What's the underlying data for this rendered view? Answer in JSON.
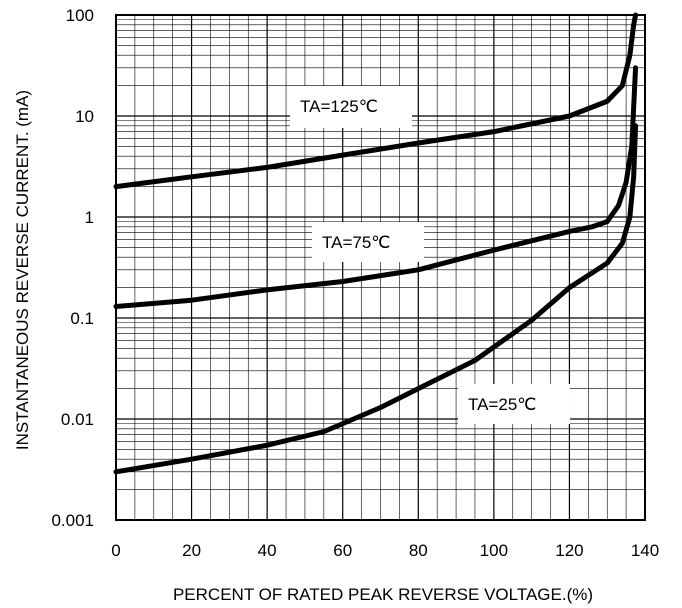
{
  "chart_data": {
    "type": "line",
    "title": "",
    "xlabel": "PERCENT OF RATED PEAK REVERSE VOLTAGE.(%)",
    "ylabel": "INSTANTANEOUS REVERSE CURRENT. (mA)",
    "xlim": [
      0,
      140
    ],
    "ylim": [
      0.001,
      100
    ],
    "yscale": "log",
    "grid": true,
    "x_ticks": [
      0,
      20,
      40,
      60,
      80,
      100,
      120,
      140
    ],
    "x_tick_labels": [
      "0",
      "20",
      "40",
      "60",
      "80",
      "100",
      "120",
      "140"
    ],
    "y_ticks": [
      0.001,
      0.01,
      0.1,
      1,
      10,
      100
    ],
    "y_tick_labels": [
      "0.001",
      "0.01",
      "0.1",
      "1",
      "10",
      "100"
    ],
    "series": [
      {
        "name": "TA=125℃",
        "x": [
          0,
          20,
          40,
          60,
          80,
          100,
          120,
          130,
          134,
          136,
          137,
          137.5
        ],
        "y": [
          2.0,
          2.5,
          3.1,
          4.1,
          5.4,
          7.0,
          10.0,
          14.0,
          20.0,
          40.0,
          80.0,
          100.0
        ]
      },
      {
        "name": "TA=75℃",
        "x": [
          0,
          20,
          40,
          60,
          80,
          100,
          120,
          126,
          130,
          133,
          135,
          136.5,
          137.5
        ],
        "y": [
          0.13,
          0.15,
          0.19,
          0.23,
          0.3,
          0.47,
          0.72,
          0.8,
          0.9,
          1.3,
          2.2,
          5.0,
          30.0
        ]
      },
      {
        "name": "TA=25℃",
        "x": [
          0,
          20,
          40,
          55,
          60,
          70,
          80,
          95,
          110,
          120,
          130,
          134,
          136,
          137,
          137.5
        ],
        "y": [
          0.003,
          0.004,
          0.0055,
          0.0075,
          0.009,
          0.013,
          0.02,
          0.038,
          0.095,
          0.2,
          0.35,
          0.55,
          1.0,
          2.5,
          8.0
        ]
      }
    ]
  },
  "labels": {
    "ta125": "TA=125℃",
    "ta75": "TA=75℃",
    "ta25": "TA=25℃"
  }
}
